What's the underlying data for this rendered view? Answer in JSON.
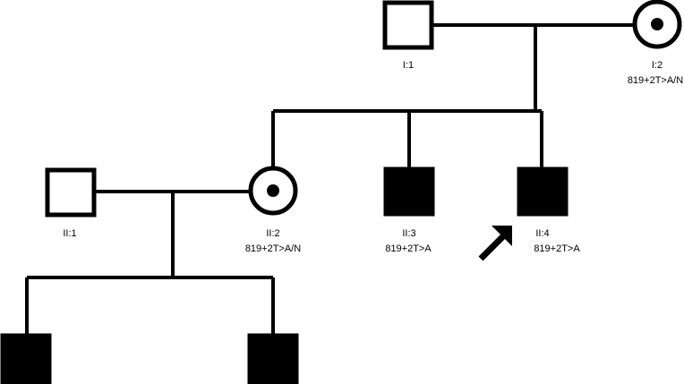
{
  "individuals": [
    {
      "id": "I:1",
      "sex": "male",
      "status": "unaffected",
      "genotype": ""
    },
    {
      "id": "I:2",
      "sex": "female",
      "status": "carrier",
      "genotype": "819+2T>A/N"
    },
    {
      "id": "II:1",
      "sex": "male",
      "status": "unaffected",
      "genotype": ""
    },
    {
      "id": "II:2",
      "sex": "female",
      "status": "carrier",
      "genotype": "819+2T>A/N"
    },
    {
      "id": "II:3",
      "sex": "male",
      "status": "affected",
      "genotype": "819+2T>A"
    },
    {
      "id": "II:4",
      "sex": "male",
      "status": "affected",
      "genotype": "819+2T>A",
      "proband": true
    },
    {
      "id": "",
      "sex": "male",
      "status": "affected",
      "genotype": ""
    },
    {
      "id": "",
      "sex": "male",
      "status": "affected",
      "genotype": ""
    }
  ],
  "colors": {
    "line": "#000000",
    "affected": "#000000",
    "background": "#ffffff"
  }
}
